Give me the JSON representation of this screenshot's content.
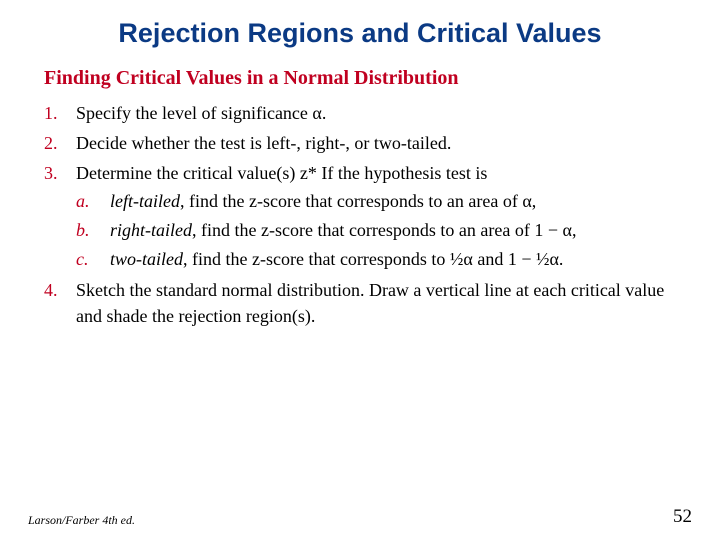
{
  "colors": {
    "title": "#0b3a84",
    "accent": "#c00020",
    "body": "#000000",
    "background": "#ffffff"
  },
  "typography": {
    "title_font": "Arial",
    "title_size_pt": 20,
    "title_weight": "bold",
    "heading_font": "Georgia",
    "heading_size_pt": 15,
    "heading_weight": "bold",
    "body_font": "Georgia",
    "body_size_pt": 13.5
  },
  "title": "Rejection Regions and Critical Values",
  "heading": "Finding Critical Values in a Normal Distribution",
  "items": {
    "i1": "Specify the level of significance α.",
    "i2": "Decide whether the test is left-, right-, or two-tailed.",
    "i3_lead": "Determine the critical value(s) z* If the hypothesis test is",
    "i3a_emph": "left-tailed",
    "i3a_rest": ", find the z-score that corresponds to an area of α,",
    "i3b_emph": "right-tailed",
    "i3b_rest": ", find the z-score that corresponds to an area of 1 − α,",
    "i3c_emph": "two-tailed",
    "i3c_rest": ", find the z-score that corresponds to ½α and 1 − ½α.",
    "i4": "Sketch the standard normal distribution.  Draw a vertical line at each critical value and shade the rejection region(s)."
  },
  "footer": {
    "left": "Larson/Farber 4th ed.",
    "page": "52"
  }
}
